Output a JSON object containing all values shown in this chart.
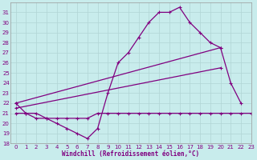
{
  "xlabel": "Windchill (Refroidissement éolien,°C)",
  "xlim": [
    -0.5,
    23
  ],
  "ylim": [
    18,
    32
  ],
  "yticks": [
    18,
    19,
    20,
    21,
    22,
    23,
    24,
    25,
    26,
    27,
    28,
    29,
    30,
    31
  ],
  "xticks": [
    0,
    1,
    2,
    3,
    4,
    5,
    6,
    7,
    8,
    9,
    10,
    11,
    12,
    13,
    14,
    15,
    16,
    17,
    18,
    19,
    20,
    21,
    22,
    23
  ],
  "bg_color": "#c8ecec",
  "grid_color": "#b0d4d4",
  "line_color": "#800080",
  "line_width": 0.9,
  "marker_size": 2.5,
  "line1_x": [
    0,
    1,
    2,
    3,
    4,
    5,
    6,
    7,
    8,
    9,
    10,
    11,
    12,
    13,
    14,
    15,
    16,
    17,
    18,
    19,
    20,
    21,
    22
  ],
  "line1_y": [
    22,
    21,
    21,
    20.5,
    20,
    19.5,
    19,
    18.5,
    19.5,
    23,
    26,
    27,
    28.5,
    30,
    31,
    31,
    31.5,
    30,
    29,
    28,
    27.5,
    24,
    22
  ],
  "line2_x": [
    0,
    1,
    2,
    3,
    4,
    5,
    6,
    7,
    8,
    9,
    10,
    11,
    12,
    13,
    14,
    15,
    16,
    17,
    18,
    19,
    20,
    21,
    22,
    23
  ],
  "line2_y": [
    21,
    21,
    20.5,
    20.5,
    20.5,
    20.5,
    20.5,
    20.5,
    21,
    21,
    21,
    21,
    21,
    21,
    21,
    21,
    21,
    21,
    21,
    21,
    21,
    21,
    21,
    21
  ],
  "line3_x": [
    0,
    20
  ],
  "line3_y": [
    21.5,
    25.5
  ],
  "line4_x": [
    0,
    20
  ],
  "line4_y": [
    22,
    27.5
  ]
}
